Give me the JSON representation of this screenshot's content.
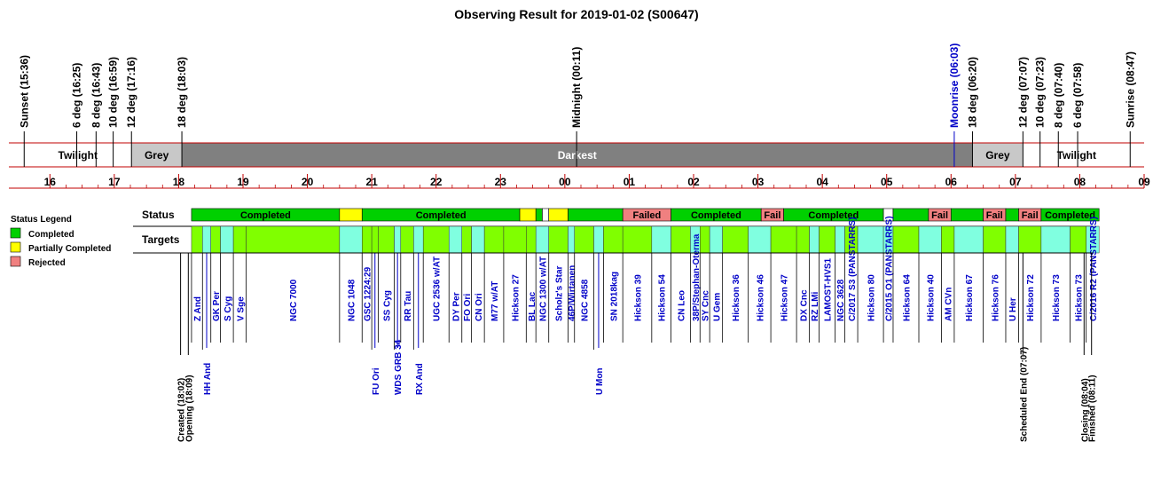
{
  "title": "Observing Result for 2019-01-02 (S00647)",
  "colors": {
    "completed": "#00d000",
    "partial": "#ffff00",
    "rejected": "#f08080",
    "target_green": "#80ff00",
    "target_cyan": "#80ffe0",
    "twilight_bg": "#ffffff",
    "grey_bg": "#c8c8c8",
    "darkest_bg": "#808080",
    "red_line": "#c00000",
    "blue_text": "#0000c8"
  },
  "legend": {
    "title": "Status Legend",
    "items": [
      {
        "label": "Completed",
        "color": "#00d000"
      },
      {
        "label": "Partially Completed",
        "color": "#ffff00"
      },
      {
        "label": "Rejected",
        "color": "#f08080"
      }
    ]
  },
  "row_labels": {
    "status": "Status",
    "targets": "Targets"
  },
  "chart_data": {
    "type": "timeline",
    "x_unit": "hour",
    "xlim": [
      15.5,
      33.0
    ],
    "hour_ticks": [
      {
        "t": 16,
        "label": "16"
      },
      {
        "t": 17,
        "label": "17"
      },
      {
        "t": 18,
        "label": "18"
      },
      {
        "t": 19,
        "label": "19"
      },
      {
        "t": 20,
        "label": "20"
      },
      {
        "t": 21,
        "label": "21"
      },
      {
        "t": 22,
        "label": "22"
      },
      {
        "t": 23,
        "label": "23"
      },
      {
        "t": 24,
        "label": "00"
      },
      {
        "t": 25,
        "label": "01"
      },
      {
        "t": 26,
        "label": "02"
      },
      {
        "t": 27,
        "label": "03"
      },
      {
        "t": 28,
        "label": "04"
      },
      {
        "t": 29,
        "label": "05"
      },
      {
        "t": 30,
        "label": "06"
      },
      {
        "t": 31,
        "label": "07"
      },
      {
        "t": 32,
        "label": "08"
      },
      {
        "t": 33,
        "label": "09"
      }
    ],
    "sky_events": [
      {
        "t": 15.6,
        "label": "Sunset (15:36)",
        "blue": false
      },
      {
        "t": 16.417,
        "label": "6 deg (16:25)",
        "blue": false
      },
      {
        "t": 16.717,
        "label": "8 deg (16:43)",
        "blue": false
      },
      {
        "t": 16.983,
        "label": "10 deg (16:59)",
        "blue": false
      },
      {
        "t": 17.267,
        "label": "12 deg (17:16)",
        "blue": false
      },
      {
        "t": 18.05,
        "label": "18 deg (18:03)",
        "blue": false
      },
      {
        "t": 24.183,
        "label": "Midnight (00:11)",
        "blue": false
      },
      {
        "t": 30.05,
        "label": "Moonrise (06:03)",
        "blue": true
      },
      {
        "t": 30.333,
        "label": "18 deg (06:20)",
        "blue": false
      },
      {
        "t": 31.117,
        "label": "12 deg (07:07)",
        "blue": false
      },
      {
        "t": 31.383,
        "label": "10 deg (07:23)",
        "blue": false
      },
      {
        "t": 31.667,
        "label": "8 deg (07:40)",
        "blue": false
      },
      {
        "t": 31.967,
        "label": "6 deg (07:58)",
        "blue": false
      },
      {
        "t": 32.783,
        "label": "Sunrise (08:47)",
        "blue": false
      }
    ],
    "sky_bands": [
      {
        "start": 15.6,
        "end": 17.267,
        "label": "Twilight",
        "kind": "twilight"
      },
      {
        "start": 17.267,
        "end": 18.05,
        "label": "Grey",
        "kind": "grey"
      },
      {
        "start": 18.05,
        "end": 30.333,
        "label": "Darkest",
        "kind": "darkest"
      },
      {
        "start": 30.333,
        "end": 31.117,
        "label": "Grey",
        "kind": "grey"
      },
      {
        "start": 31.117,
        "end": 32.783,
        "label": "Twilight",
        "kind": "twilight"
      }
    ],
    "status_segments": [
      {
        "start": 18.2,
        "end": 20.5,
        "kind": "completed",
        "label": "Completed"
      },
      {
        "start": 20.5,
        "end": 20.85,
        "kind": "partial",
        "label": ""
      },
      {
        "start": 20.85,
        "end": 23.3,
        "kind": "completed",
        "label": "Completed"
      },
      {
        "start": 23.3,
        "end": 23.55,
        "kind": "partial",
        "label": ""
      },
      {
        "start": 23.55,
        "end": 23.65,
        "kind": "completed",
        "label": ""
      },
      {
        "start": 23.65,
        "end": 23.75,
        "kind": "gap",
        "label": ""
      },
      {
        "start": 23.75,
        "end": 24.05,
        "kind": "partial",
        "label": ""
      },
      {
        "start": 24.05,
        "end": 24.9,
        "kind": "completed",
        "label": ""
      },
      {
        "start": 24.9,
        "end": 25.65,
        "kind": "rejected",
        "label": "Failed"
      },
      {
        "start": 25.65,
        "end": 27.05,
        "kind": "completed",
        "label": "Completed"
      },
      {
        "start": 27.05,
        "end": 27.4,
        "kind": "rejected",
        "label": "Fail"
      },
      {
        "start": 27.4,
        "end": 28.95,
        "kind": "completed",
        "label": "Completed"
      },
      {
        "start": 28.95,
        "end": 29.1,
        "kind": "gap",
        "label": ""
      },
      {
        "start": 29.1,
        "end": 29.65,
        "kind": "completed",
        "label": ""
      },
      {
        "start": 29.65,
        "end": 30.0,
        "kind": "rejected",
        "label": "Fail"
      },
      {
        "start": 30.0,
        "end": 30.5,
        "kind": "completed",
        "label": ""
      },
      {
        "start": 30.5,
        "end": 30.85,
        "kind": "rejected",
        "label": "Fail"
      },
      {
        "start": 30.85,
        "end": 31.05,
        "kind": "completed",
        "label": ""
      },
      {
        "start": 31.05,
        "end": 31.4,
        "kind": "rejected",
        "label": "Fail"
      },
      {
        "start": 31.4,
        "end": 32.3,
        "kind": "completed",
        "label": "Completed"
      }
    ],
    "targets": [
      {
        "start": 18.2,
        "end": 18.37,
        "name": "Z And"
      },
      {
        "start": 18.37,
        "end": 18.5,
        "name": "HH And",
        "low": true
      },
      {
        "start": 18.5,
        "end": 18.65,
        "name": "GK Per"
      },
      {
        "start": 18.65,
        "end": 18.85,
        "name": "S Cyg"
      },
      {
        "start": 18.85,
        "end": 19.05,
        "name": "V Sge"
      },
      {
        "start": 19.05,
        "end": 20.5,
        "name": "NGC 7000"
      },
      {
        "start": 20.5,
        "end": 20.85,
        "name": "NGC 1048"
      },
      {
        "start": 20.85,
        "end": 21.0,
        "name": "GSC 1224:29"
      },
      {
        "start": 21.0,
        "end": 21.1,
        "name": "FU Ori",
        "low": true
      },
      {
        "start": 21.1,
        "end": 21.35,
        "name": "SS Cyg"
      },
      {
        "start": 21.35,
        "end": 21.45,
        "name": "WDS GRB 34",
        "low": true
      },
      {
        "start": 21.45,
        "end": 21.65,
        "name": "RR Tau"
      },
      {
        "start": 21.65,
        "end": 21.8,
        "name": "RX And",
        "low": true
      },
      {
        "start": 21.8,
        "end": 22.2,
        "name": "UGC 2536 w/AT"
      },
      {
        "start": 22.2,
        "end": 22.4,
        "name": "DY Per"
      },
      {
        "start": 22.4,
        "end": 22.55,
        "name": "FO Ori"
      },
      {
        "start": 22.55,
        "end": 22.75,
        "name": "CN Ori"
      },
      {
        "start": 22.75,
        "end": 23.05,
        "name": "M77 w/AT"
      },
      {
        "start": 23.05,
        "end": 23.4,
        "name": "Hickson 27"
      },
      {
        "start": 23.4,
        "end": 23.55,
        "name": "BL Lac"
      },
      {
        "start": 23.55,
        "end": 23.75,
        "name": "NGC 1300 w/AT"
      },
      {
        "start": 23.75,
        "end": 24.05,
        "name": "Scholz's Star"
      },
      {
        "start": 24.05,
        "end": 24.15,
        "name": "46P/Wirtanen"
      },
      {
        "start": 24.15,
        "end": 24.45,
        "name": "NGC 4858"
      },
      {
        "start": 24.45,
        "end": 24.6,
        "name": "U Mon",
        "low": true
      },
      {
        "start": 24.6,
        "end": 24.9,
        "name": "SN 2018kag"
      },
      {
        "start": 24.9,
        "end": 25.35,
        "name": "Hickson 39"
      },
      {
        "start": 25.35,
        "end": 25.65,
        "name": "Hickson 54"
      },
      {
        "start": 25.65,
        "end": 25.95,
        "name": "CN Leo"
      },
      {
        "start": 25.95,
        "end": 26.1,
        "name": "38P/Stephan-Oterma"
      },
      {
        "start": 26.1,
        "end": 26.25,
        "name": "SY Cnc"
      },
      {
        "start": 26.25,
        "end": 26.45,
        "name": "U Gem"
      },
      {
        "start": 26.45,
        "end": 26.85,
        "name": "Hickson 36"
      },
      {
        "start": 26.85,
        "end": 27.2,
        "name": "Hickson 46"
      },
      {
        "start": 27.2,
        "end": 27.6,
        "name": "Hickson 47"
      },
      {
        "start": 27.6,
        "end": 27.8,
        "name": "DX Cnc"
      },
      {
        "start": 27.8,
        "end": 27.95,
        "name": "RZ LMi"
      },
      {
        "start": 27.95,
        "end": 28.2,
        "name": "LAMOST-HVS1"
      },
      {
        "start": 28.2,
        "end": 28.35,
        "name": "NGC 3628"
      },
      {
        "start": 28.35,
        "end": 28.55,
        "name": "C/2017 S3 (PANSTARRS)"
      },
      {
        "start": 28.55,
        "end": 28.95,
        "name": "Hickson 80"
      },
      {
        "start": 28.95,
        "end": 29.1,
        "name": "C/2015 O1 (PANSTARRS)"
      },
      {
        "start": 29.1,
        "end": 29.5,
        "name": "Hickson 64"
      },
      {
        "start": 29.5,
        "end": 29.85,
        "name": "Hickson 40"
      },
      {
        "start": 29.85,
        "end": 30.05,
        "name": "AM CVn"
      },
      {
        "start": 30.05,
        "end": 30.5,
        "name": "Hickson 67"
      },
      {
        "start": 30.5,
        "end": 30.85,
        "name": "Hickson 76"
      },
      {
        "start": 30.85,
        "end": 31.05,
        "name": "U Her"
      },
      {
        "start": 31.05,
        "end": 31.4,
        "name": "Hickson 72"
      },
      {
        "start": 31.4,
        "end": 31.85,
        "name": "Hickson 73"
      },
      {
        "start": 31.85,
        "end": 32.1,
        "name": "Hickson 73"
      },
      {
        "start": 32.1,
        "end": 32.3,
        "name": "C/2016 R2 (PANSTARRS)"
      }
    ],
    "bottom_events": [
      {
        "t": 18.03,
        "label": "Created (18:02)"
      },
      {
        "t": 18.15,
        "label": "Opening (18:09)"
      },
      {
        "t": 31.117,
        "label": "Scheduled End (07:07)"
      },
      {
        "t": 32.067,
        "label": "Closing (08:04)"
      },
      {
        "t": 32.183,
        "label": "Finished (08:11)"
      }
    ]
  }
}
